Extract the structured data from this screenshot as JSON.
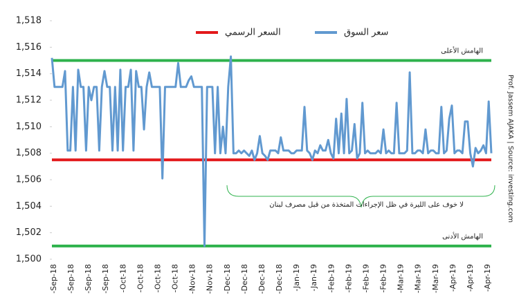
{
  "chart_data": {
    "type": "line",
    "series": [
      {
        "name": "سعر السوق",
        "color": "#6199d0",
        "values": [
          1515.2,
          1513,
          1513,
          1513,
          1513,
          1514.2,
          1508.2,
          1508.2,
          1513,
          1508.2,
          1514.3,
          1513,
          1513,
          1508.2,
          1513,
          1512,
          1513,
          1513,
          1508.2,
          1513,
          1514.2,
          1513,
          1513,
          1508.2,
          1513,
          1508.2,
          1514.3,
          1508.2,
          1513,
          1513,
          1514.3,
          1508.2,
          1514.2,
          1513,
          1513,
          1509.8,
          1513,
          1514.1,
          1513,
          1513,
          1513,
          1513,
          1506.1,
          1513,
          1513,
          1513,
          1513,
          1513,
          1514.8,
          1513,
          1513,
          1513,
          1513.5,
          1513.8,
          1513,
          1513,
          1513,
          1513,
          1501,
          1513,
          1513,
          1513,
          1508,
          1513,
          1508,
          1510,
          1508,
          1513,
          1515.3,
          1508,
          1508,
          1508.2,
          1508,
          1508.2,
          1508,
          1507.8,
          1508.2,
          1507.5,
          1508,
          1509.3,
          1508,
          1507.8,
          1507.5,
          1508.2,
          1508.2,
          1508.2,
          1508,
          1509.2,
          1508.2,
          1508.2,
          1508.2,
          1508,
          1508,
          1508.2,
          1508.2,
          1508.2,
          1511.5,
          1508.2,
          1508,
          1507.5,
          1508.2,
          1508,
          1508.6,
          1508.2,
          1508.2,
          1509,
          1508,
          1507.6,
          1510.6,
          1508,
          1511,
          1508,
          1512.1,
          1508,
          1508.2,
          1510.2,
          1507.6,
          1508,
          1511.8,
          1508,
          1508.2,
          1508,
          1508,
          1508,
          1508.2,
          1508,
          1509.8,
          1508,
          1508.2,
          1508,
          1508,
          1511.8,
          1508,
          1508,
          1508,
          1508.2,
          1514.1,
          1508,
          1508,
          1508.2,
          1508.2,
          1508,
          1509.8,
          1508,
          1508.2,
          1508.2,
          1508,
          1508,
          1511.5,
          1508,
          1508.2,
          1510.6,
          1511.6,
          1508,
          1508.2,
          1508.2,
          1508,
          1510.4,
          1510.4,
          1508,
          1507,
          1508.4,
          1508,
          1508.2,
          1508.6,
          1508,
          1511.9,
          1508
        ]
      }
    ],
    "reference_lines": [
      {
        "name": "السعر الرسمي",
        "value": 1507.5,
        "color": "#e3191b"
      },
      {
        "label": "الهامش الأعلى",
        "value": 1515,
        "color": "#2eb24c"
      },
      {
        "label": "الهامش الأدنى",
        "value": 1501,
        "color": "#2eb24c"
      }
    ],
    "xtick_labels": [
      "-Sep-18",
      "-Sep-18",
      "-Sep-18",
      "-Sep-18",
      "-Oct-18",
      "-Oct-18",
      "-Oct-18",
      "-Oct-18",
      "-Nov-18",
      "-Nov-18",
      "-Dec-18",
      "-Dec-18",
      "-Dec-18",
      "-Dec-18",
      "-Jan-19",
      "-Jan-19",
      "-Feb-19",
      "-Feb-19",
      "-Feb-19",
      "-Feb-19",
      "-Mar-19",
      "-Mar-19",
      "-Mar-19",
      "-Apr-19",
      "-Apr-19",
      "-Apr-19"
    ],
    "ylim": [
      1500,
      1518
    ],
    "yticks": [
      {
        "value": 1500,
        "label": "1,500"
      },
      {
        "value": 1502,
        "label": "1,502"
      },
      {
        "value": 1504,
        "label": "1,504"
      },
      {
        "value": 1506,
        "label": "1,506"
      },
      {
        "value": 1508,
        "label": "1,508"
      },
      {
        "value": 1510,
        "label": "1,510"
      },
      {
        "value": 1512,
        "label": "1,512"
      },
      {
        "value": 1514,
        "label": "1,514"
      },
      {
        "value": 1516,
        "label": "1,516"
      },
      {
        "value": 1518,
        "label": "1,518"
      }
    ],
    "annotation": "لا خوف على الليرة في ظل الإجراءات المتخذة من قبل مصرف لبنان",
    "source": "Prof. Jassem AJAKA | Source: investing.com"
  }
}
